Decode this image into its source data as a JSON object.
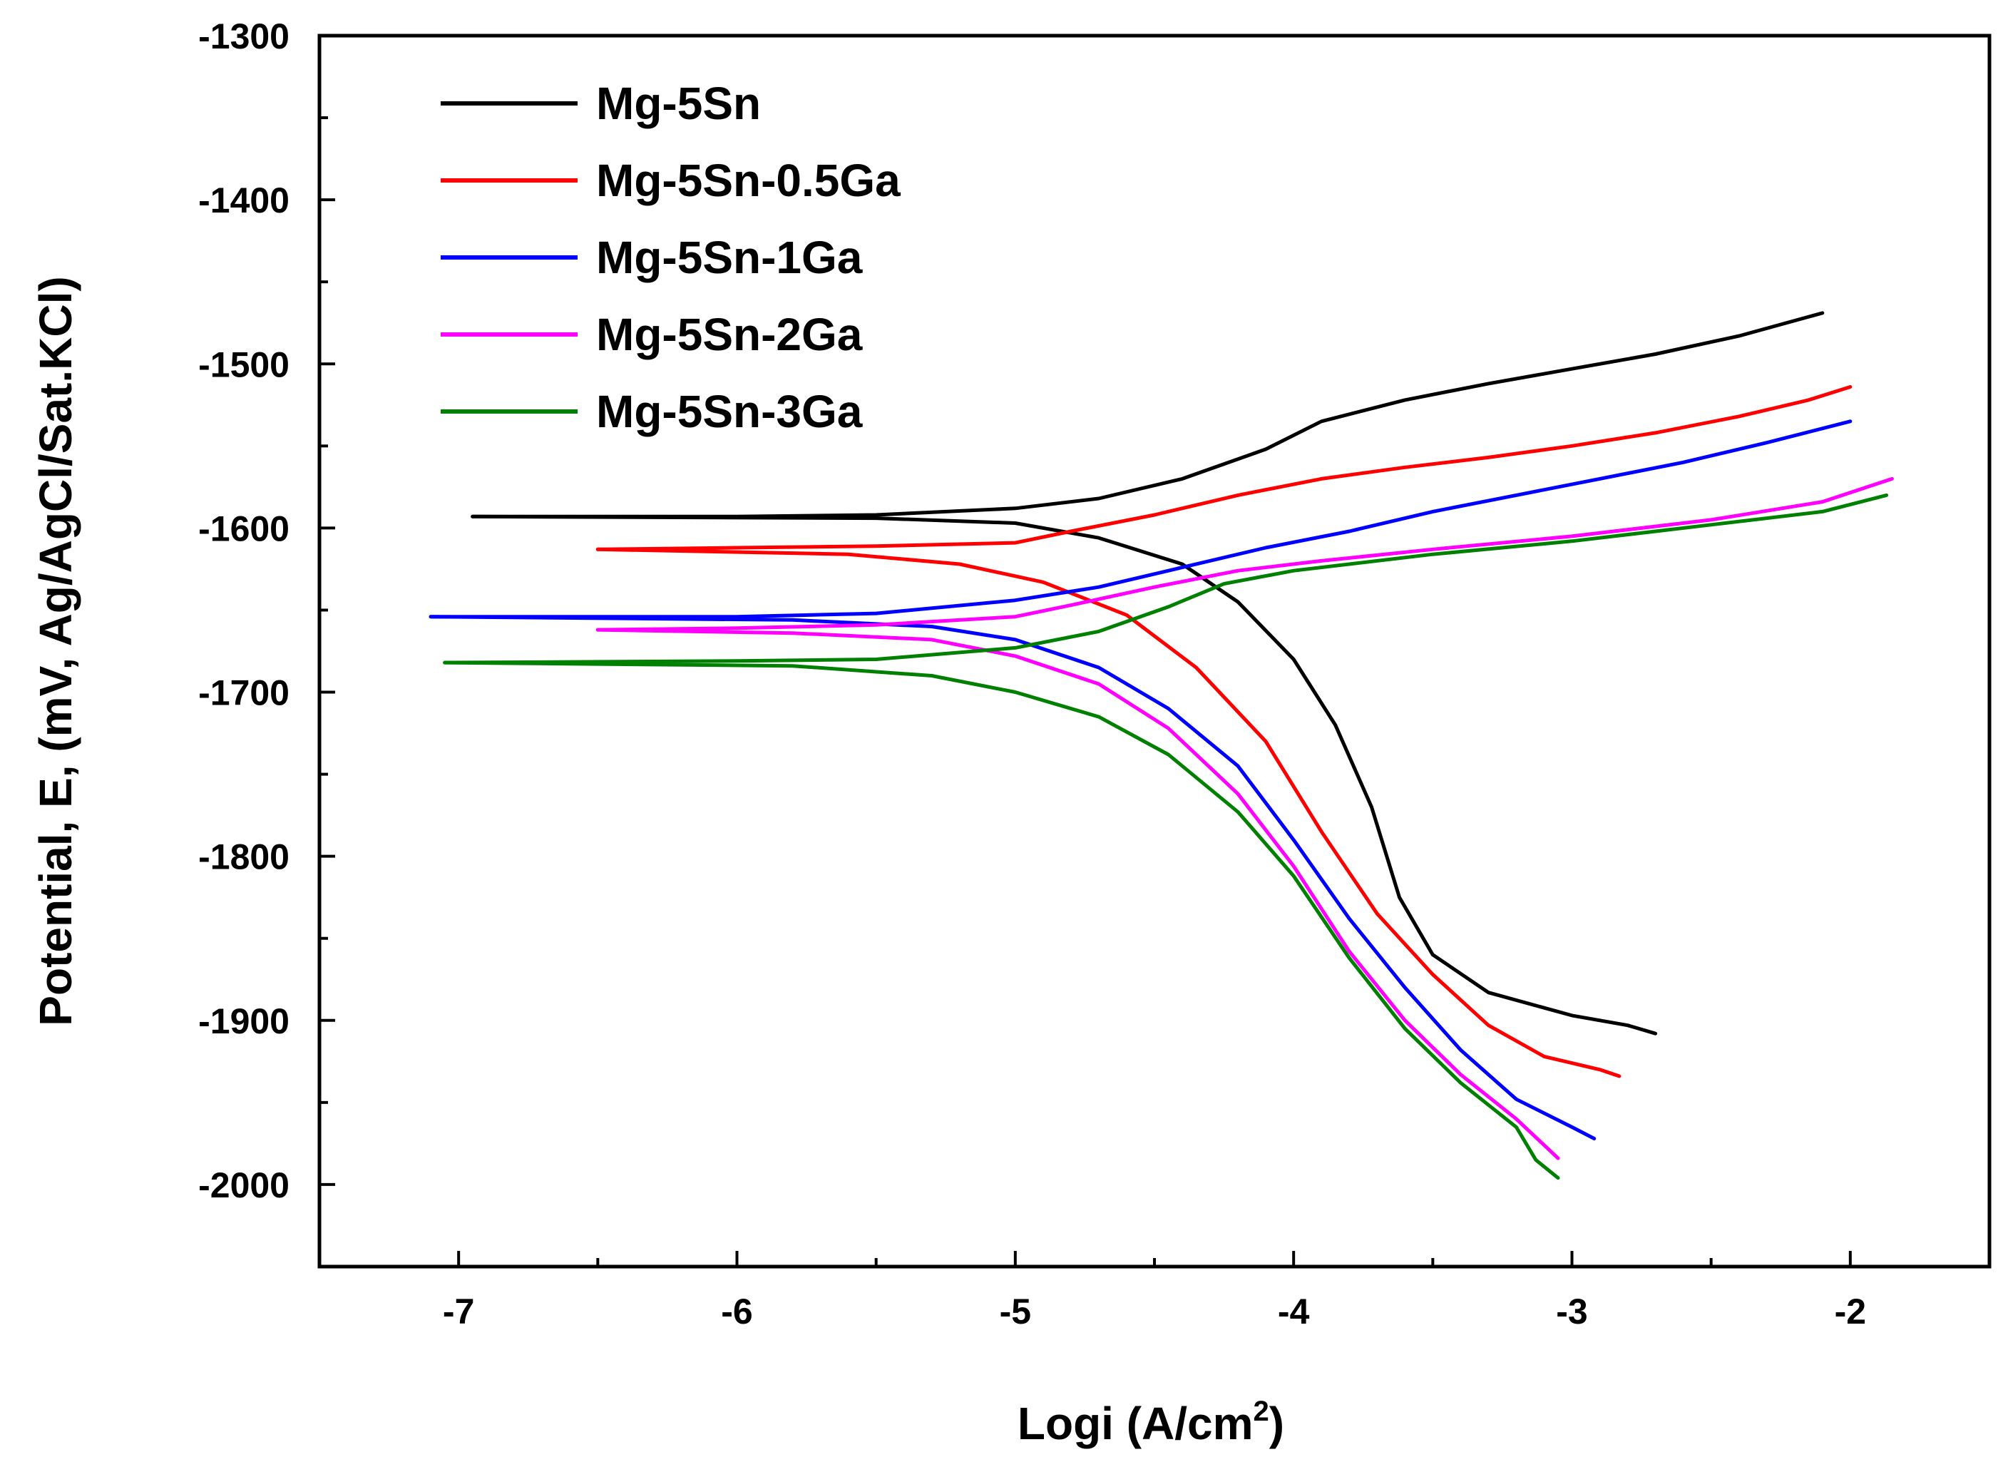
{
  "chart_data": {
    "type": "line",
    "title": "",
    "xlabel": "Logi (A/cm",
    "xlabel_sup": "2",
    "xlabel_close": ")",
    "ylabel": "Potential, E, (mV, Ag/AgCl/Sat.KCl)",
    "xlim": [
      -7.5,
      -1.5
    ],
    "ylim": [
      -2050,
      -1300
    ],
    "xticks": [
      -7,
      -6,
      -5,
      -4,
      -3,
      -2
    ],
    "yticks": [
      -2000,
      -1900,
      -1800,
      -1700,
      -1600,
      -1500,
      -1400,
      -1300
    ],
    "xtick_labels": [
      "-7",
      "-6",
      "-5",
      "-4",
      "-3",
      "-2"
    ],
    "ytick_labels": [
      "-2000",
      "-1900",
      "-1800",
      "-1700",
      "-1600",
      "-1500",
      "-1400",
      "-1300"
    ],
    "grid": false,
    "legend_position": "top-left",
    "series": [
      {
        "name": "Mg-5Sn",
        "color": "#000000",
        "anodic": [
          [
            -6.95,
            -1593
          ],
          [
            -6.0,
            -1593
          ],
          [
            -5.5,
            -1592
          ],
          [
            -5.0,
            -1588
          ],
          [
            -4.7,
            -1582
          ],
          [
            -4.4,
            -1570
          ],
          [
            -4.1,
            -1552
          ],
          [
            -3.9,
            -1535
          ],
          [
            -3.6,
            -1522
          ],
          [
            -3.3,
            -1512
          ],
          [
            -3.0,
            -1503
          ],
          [
            -2.7,
            -1494
          ],
          [
            -2.4,
            -1483
          ],
          [
            -2.1,
            -1469
          ]
        ],
        "cathodic": [
          [
            -6.95,
            -1593
          ],
          [
            -5.5,
            -1594
          ],
          [
            -5.0,
            -1597
          ],
          [
            -4.7,
            -1606
          ],
          [
            -4.4,
            -1622
          ],
          [
            -4.2,
            -1645
          ],
          [
            -4.0,
            -1680
          ],
          [
            -3.85,
            -1720
          ],
          [
            -3.72,
            -1770
          ],
          [
            -3.62,
            -1825
          ],
          [
            -3.5,
            -1860
          ],
          [
            -3.3,
            -1883
          ],
          [
            -3.0,
            -1897
          ],
          [
            -2.8,
            -1903
          ],
          [
            -2.7,
            -1908
          ]
        ]
      },
      {
        "name": "Mg-5Sn-0.5Ga",
        "color": "#ff0000",
        "anodic": [
          [
            -6.5,
            -1613
          ],
          [
            -6.0,
            -1612
          ],
          [
            -5.5,
            -1611
          ],
          [
            -5.0,
            -1609
          ],
          [
            -4.8,
            -1602
          ],
          [
            -4.5,
            -1592
          ],
          [
            -4.2,
            -1580
          ],
          [
            -3.9,
            -1570
          ],
          [
            -3.6,
            -1563
          ],
          [
            -3.3,
            -1557
          ],
          [
            -3.0,
            -1550
          ],
          [
            -2.7,
            -1542
          ],
          [
            -2.4,
            -1532
          ],
          [
            -2.15,
            -1522
          ],
          [
            -2.0,
            -1514
          ]
        ],
        "cathodic": [
          [
            -6.5,
            -1613
          ],
          [
            -5.6,
            -1616
          ],
          [
            -5.2,
            -1622
          ],
          [
            -4.9,
            -1633
          ],
          [
            -4.6,
            -1653
          ],
          [
            -4.35,
            -1685
          ],
          [
            -4.1,
            -1730
          ],
          [
            -3.9,
            -1785
          ],
          [
            -3.7,
            -1835
          ],
          [
            -3.5,
            -1872
          ],
          [
            -3.3,
            -1903
          ],
          [
            -3.1,
            -1922
          ],
          [
            -2.9,
            -1930
          ],
          [
            -2.83,
            -1934
          ]
        ]
      },
      {
        "name": "Mg-5Sn-1Ga",
        "color": "#0000ff",
        "anodic": [
          [
            -7.1,
            -1654
          ],
          [
            -6.0,
            -1654
          ],
          [
            -5.5,
            -1652
          ],
          [
            -5.0,
            -1644
          ],
          [
            -4.7,
            -1636
          ],
          [
            -4.4,
            -1624
          ],
          [
            -4.1,
            -1612
          ],
          [
            -3.8,
            -1602
          ],
          [
            -3.5,
            -1590
          ],
          [
            -3.2,
            -1580
          ],
          [
            -2.9,
            -1570
          ],
          [
            -2.6,
            -1560
          ],
          [
            -2.3,
            -1548
          ],
          [
            -2.0,
            -1535
          ]
        ],
        "cathodic": [
          [
            -7.1,
            -1654
          ],
          [
            -5.8,
            -1656
          ],
          [
            -5.3,
            -1660
          ],
          [
            -5.0,
            -1668
          ],
          [
            -4.7,
            -1685
          ],
          [
            -4.45,
            -1710
          ],
          [
            -4.2,
            -1745
          ],
          [
            -4.0,
            -1790
          ],
          [
            -3.8,
            -1838
          ],
          [
            -3.6,
            -1880
          ],
          [
            -3.4,
            -1918
          ],
          [
            -3.2,
            -1948
          ],
          [
            -3.0,
            -1965
          ],
          [
            -2.92,
            -1972
          ]
        ]
      },
      {
        "name": "Mg-5Sn-2Ga",
        "color": "#ff00ff",
        "anodic": [
          [
            -6.5,
            -1662
          ],
          [
            -6.0,
            -1661
          ],
          [
            -5.5,
            -1659
          ],
          [
            -5.0,
            -1654
          ],
          [
            -4.8,
            -1647
          ],
          [
            -4.5,
            -1636
          ],
          [
            -4.2,
            -1626
          ],
          [
            -3.9,
            -1620
          ],
          [
            -3.5,
            -1613
          ],
          [
            -3.0,
            -1605
          ],
          [
            -2.5,
            -1595
          ],
          [
            -2.1,
            -1584
          ],
          [
            -1.85,
            -1570
          ]
        ],
        "cathodic": [
          [
            -6.5,
            -1662
          ],
          [
            -5.8,
            -1664
          ],
          [
            -5.3,
            -1668
          ],
          [
            -5.0,
            -1678
          ],
          [
            -4.7,
            -1695
          ],
          [
            -4.45,
            -1722
          ],
          [
            -4.2,
            -1762
          ],
          [
            -4.0,
            -1806
          ],
          [
            -3.8,
            -1858
          ],
          [
            -3.6,
            -1900
          ],
          [
            -3.4,
            -1933
          ],
          [
            -3.2,
            -1960
          ],
          [
            -3.05,
            -1984
          ]
        ]
      },
      {
        "name": "Mg-5Sn-3Ga",
        "color": "#008000",
        "anodic": [
          [
            -7.05,
            -1682
          ],
          [
            -6.0,
            -1681
          ],
          [
            -5.5,
            -1680
          ],
          [
            -5.0,
            -1673
          ],
          [
            -4.7,
            -1663
          ],
          [
            -4.45,
            -1648
          ],
          [
            -4.25,
            -1634
          ],
          [
            -4.0,
            -1626
          ],
          [
            -3.5,
            -1616
          ],
          [
            -3.0,
            -1608
          ],
          [
            -2.5,
            -1598
          ],
          [
            -2.1,
            -1590
          ],
          [
            -1.87,
            -1580
          ]
        ],
        "cathodic": [
          [
            -7.05,
            -1682
          ],
          [
            -5.8,
            -1684
          ],
          [
            -5.3,
            -1690
          ],
          [
            -5.0,
            -1700
          ],
          [
            -4.7,
            -1715
          ],
          [
            -4.45,
            -1738
          ],
          [
            -4.2,
            -1773
          ],
          [
            -4.0,
            -1812
          ],
          [
            -3.8,
            -1862
          ],
          [
            -3.6,
            -1905
          ],
          [
            -3.4,
            -1938
          ],
          [
            -3.2,
            -1965
          ],
          [
            -3.13,
            -1985
          ],
          [
            -3.05,
            -1996
          ]
        ]
      }
    ]
  }
}
